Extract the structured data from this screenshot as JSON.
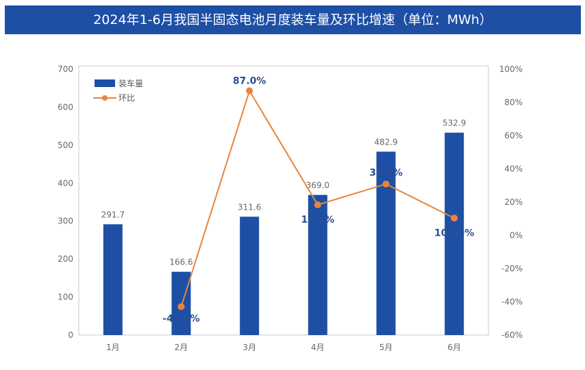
{
  "chart_data": {
    "type": "bar+line",
    "title": "2024年1-6月我国半固态电池月度装车量及环比增速（单位：MWh）",
    "categories": [
      "1月",
      "2月",
      "3月",
      "4月",
      "5月",
      "6月"
    ],
    "series": [
      {
        "name": "装车量",
        "type": "bar",
        "axis": "left",
        "values": [
          291.7,
          166.6,
          311.6,
          369.0,
          482.9,
          532.9
        ],
        "labels": [
          "291.7",
          "166.6",
          "311.6",
          "369.0",
          "482.9",
          "532.9"
        ],
        "color": "#1d4fa5"
      },
      {
        "name": "环比",
        "type": "line",
        "axis": "right",
        "values": [
          null,
          -42.9,
          87.0,
          18.4,
          30.9,
          10.4
        ],
        "labels": [
          "",
          "-42.9%",
          "87.0%",
          "18.4%",
          "30.9%",
          "10.40%"
        ],
        "color": "#e8843a"
      }
    ],
    "ylim": [
      0,
      700
    ],
    "yticks": [
      "0",
      "100",
      "200",
      "300",
      "400",
      "500",
      "600",
      "700"
    ],
    "y2lim": [
      -60,
      100
    ],
    "y2ticks": [
      "-60%",
      "-40%",
      "-20%",
      "0%",
      "20%",
      "40%",
      "60%",
      "80%",
      "100%"
    ],
    "legend": "top-left"
  }
}
